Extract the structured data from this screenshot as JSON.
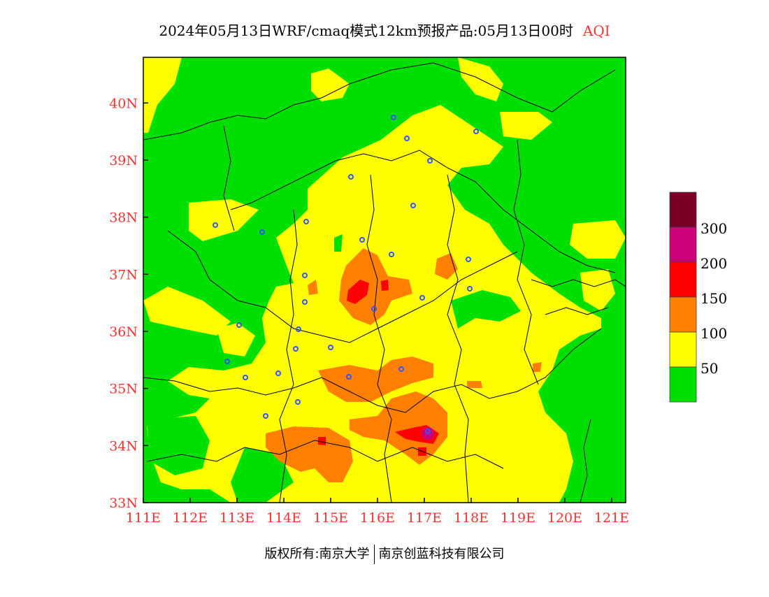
{
  "header": {
    "title": "2024年05月13日WRF/cmaq模式12km预报产品:05月13日00时",
    "variable": "AQI"
  },
  "map": {
    "lat_labels": [
      "40N",
      "39N",
      "38N",
      "37N",
      "36N",
      "35N",
      "34N",
      "33N"
    ],
    "lon_labels": [
      "111E",
      "112E",
      "113E",
      "114E",
      "115E",
      "116E",
      "117E",
      "118E",
      "119E",
      "120E",
      "121E"
    ],
    "lat_range": [
      33,
      40.8
    ],
    "lon_range": [
      111,
      121.3
    ],
    "colors": {
      "good": "#00e000",
      "moderate": "#ffff00",
      "usg": "#ff8000",
      "unhealthy": "#ff0000",
      "very_unhealthy": "#cc0077",
      "hazardous": "#7a0025",
      "axis_label": "#ff3030",
      "city_marker": "#3355ff"
    }
  },
  "legend": {
    "labels": [
      "300",
      "200",
      "150",
      "100",
      "50"
    ],
    "colors": [
      "#7a0025",
      "#cc0077",
      "#ff0000",
      "#ff8000",
      "#ffff00",
      "#00e000"
    ]
  },
  "footer": {
    "copyright": "版权所有:南京大学",
    "company": "南京创蓝科技有限公司"
  }
}
